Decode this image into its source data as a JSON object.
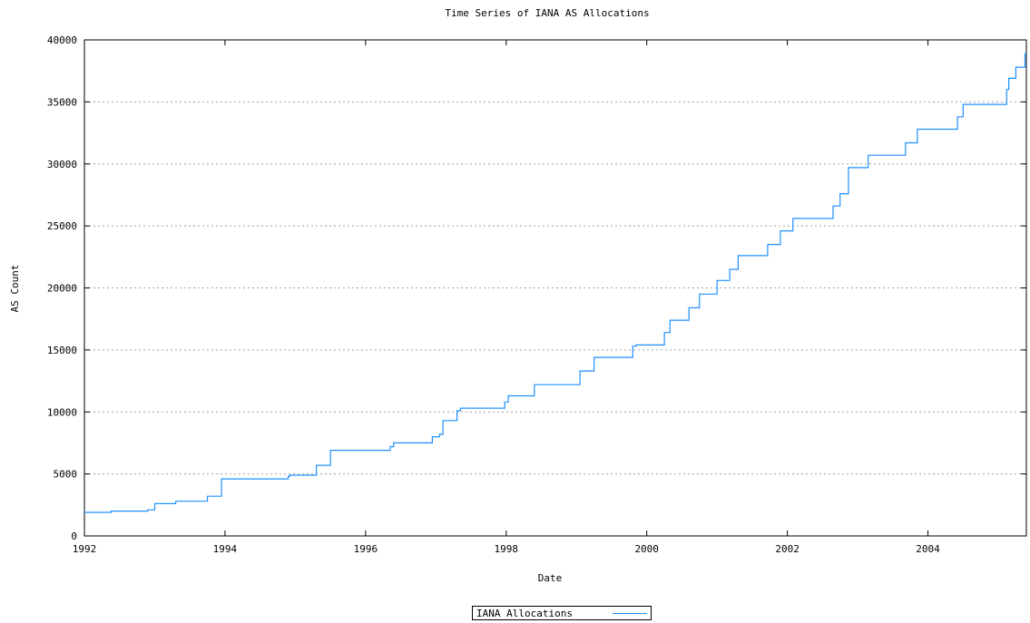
{
  "chart_data": {
    "type": "line",
    "title": "Time Series of IANA AS Allocations",
    "xlabel": "Date",
    "ylabel": "AS Count",
    "xlim": [
      1992.0,
      2005.4
    ],
    "ylim": [
      0,
      40000
    ],
    "x_ticks": [
      "1992",
      "1994",
      "1996",
      "1998",
      "2000",
      "2002",
      "2004"
    ],
    "y_ticks": [
      "0",
      "5000",
      "10000",
      "15000",
      "20000",
      "25000",
      "30000",
      "35000",
      "40000"
    ],
    "grid": "horizontal-dotted",
    "legend_position": "bottom-center",
    "series": [
      {
        "name": "IANA Allocations",
        "color": "#1e90ff",
        "step": true,
        "x": [
          1992.0,
          1992.38,
          1992.9,
          1993.0,
          1993.3,
          1993.75,
          1993.95,
          1994.9,
          1994.92,
          1995.3,
          1995.5,
          1996.35,
          1996.4,
          1996.95,
          1997.0,
          1997.05,
          1997.1,
          1997.3,
          1997.35,
          1997.98,
          1998.03,
          1998.4,
          1999.05,
          1999.25,
          1999.8,
          1999.85,
          2000.25,
          2000.33,
          2000.6,
          2000.75,
          2001.0,
          2001.18,
          2001.3,
          2001.72,
          2001.9,
          2002.08,
          2002.25,
          2002.65,
          2002.75,
          2002.87,
          2002.93,
          2003.15,
          2003.68,
          2003.85,
          2004.42,
          2004.5,
          2005.12,
          2005.15,
          2005.25,
          2005.38,
          2005.4
        ],
        "y": [
          1900,
          2000,
          2100,
          2600,
          2800,
          3200,
          4600,
          4800,
          4900,
          5700,
          6900,
          7200,
          7500,
          8000,
          8000,
          8200,
          9300,
          10100,
          10300,
          10800,
          11300,
          12200,
          13300,
          14400,
          15300,
          15400,
          16400,
          17400,
          18400,
          19500,
          20600,
          21500,
          22600,
          23500,
          24600,
          25600,
          25600,
          26600,
          27600,
          29700,
          29700,
          30700,
          31700,
          32800,
          33800,
          34800,
          36000,
          36900,
          37800,
          38900,
          38900
        ]
      }
    ]
  }
}
